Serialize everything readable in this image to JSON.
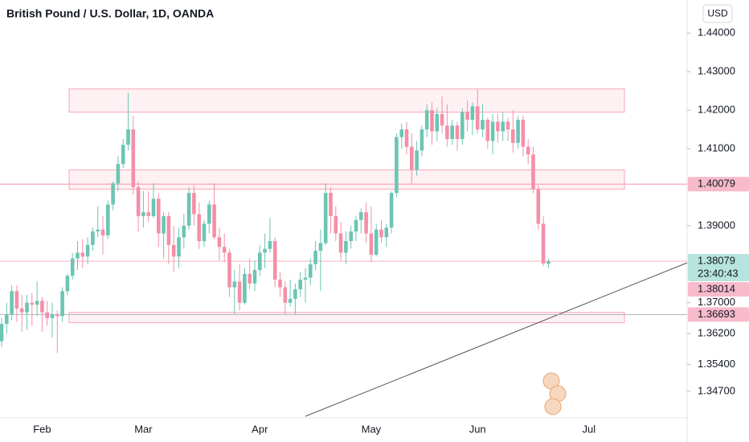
{
  "chart_data": {
    "type": "candlestick",
    "title": "British Pound / U.S. Dollar, 1D, OANDA",
    "currency": "USD",
    "categories": [
      null,
      null,
      null,
      null,
      null,
      null,
      null,
      null,
      "Feb",
      null,
      null,
      null,
      null,
      null,
      null,
      null,
      null,
      null,
      null,
      null,
      null,
      null,
      null,
      null,
      null,
      null,
      null,
      null,
      "Mar",
      null,
      null,
      null,
      null,
      null,
      null,
      null,
      null,
      null,
      null,
      null,
      null,
      null,
      null,
      null,
      null,
      null,
      null,
      null,
      null,
      null,
      null,
      "Apr",
      null,
      null,
      null,
      null,
      null,
      null,
      null,
      null,
      null,
      null,
      null,
      null,
      null,
      null,
      null,
      null,
      null,
      null,
      null,
      null,
      null,
      "May",
      null,
      null,
      null,
      null,
      null,
      null,
      null,
      null,
      null,
      null,
      null,
      null,
      null,
      null,
      null,
      null,
      null,
      null,
      null,
      null,
      "Jun",
      null,
      null,
      null,
      null,
      null,
      null,
      null,
      null,
      null,
      null,
      null,
      null,
      null,
      null,
      null,
      null,
      null,
      null,
      null,
      null,
      null,
      "Jul"
    ],
    "open": [
      1.36,
      1.3645,
      1.367,
      1.373,
      1.3685,
      1.3675,
      1.37,
      1.3695,
      1.3705,
      1.3675,
      1.366,
      1.367,
      1.3665,
      1.373,
      1.377,
      1.3815,
      1.383,
      1.382,
      1.385,
      1.3885,
      1.389,
      1.3875,
      1.3955,
      1.401,
      1.406,
      1.411,
      1.415,
      1.4,
      1.3925,
      1.3935,
      1.3925,
      1.397,
      1.388,
      1.3925,
      1.385,
      1.382,
      1.387,
      1.39,
      1.3985,
      1.393,
      1.386,
      1.3905,
      1.3955,
      1.387,
      1.3845,
      1.383,
      1.374,
      1.3755,
      1.37,
      1.3775,
      1.375,
      1.3785,
      1.383,
      1.384,
      1.386,
      1.376,
      1.374,
      1.37,
      1.371,
      1.3735,
      1.376,
      1.3765,
      1.38,
      1.3835,
      1.3855,
      1.3985,
      1.3925,
      1.388,
      1.383,
      1.386,
      1.3885,
      1.3915,
      1.3935,
      1.388,
      1.3825,
      1.389,
      1.387,
      1.3895,
      1.3985,
      1.413,
      1.415,
      1.4105,
      1.4045,
      1.4095,
      1.415,
      1.42,
      1.4145,
      1.419,
      1.416,
      1.4125,
      1.416,
      1.4125,
      1.4195,
      1.4175,
      1.421,
      1.415,
      1.4175,
      1.412,
      1.417,
      1.4145,
      1.417,
      1.415,
      1.4115,
      1.4175,
      1.4105,
      1.4085,
      1.3995,
      1.3905,
      1.38014,
      null,
      null,
      null,
      null,
      null,
      null,
      null,
      null
    ],
    "high": [
      1.366,
      1.37,
      1.3745,
      1.3745,
      1.372,
      1.372,
      1.3725,
      1.3755,
      1.3715,
      1.3705,
      1.37,
      1.368,
      1.374,
      1.3775,
      1.383,
      1.386,
      1.3865,
      1.387,
      1.3895,
      1.395,
      1.3925,
      1.3965,
      1.4015,
      1.408,
      1.4125,
      1.4245,
      1.4185,
      1.4015,
      1.399,
      1.399,
      1.401,
      1.3985,
      1.3935,
      1.3935,
      1.39,
      1.3895,
      1.393,
      1.4,
      1.4005,
      1.396,
      1.3915,
      1.3965,
      1.401,
      1.3895,
      1.388,
      1.384,
      1.3785,
      1.38,
      1.379,
      1.3815,
      1.381,
      1.385,
      1.388,
      1.392,
      1.387,
      1.378,
      1.3755,
      1.376,
      1.375,
      1.378,
      1.379,
      1.3815,
      1.386,
      1.389,
      1.401,
      1.4,
      1.395,
      1.391,
      1.3885,
      1.39,
      1.3925,
      1.3945,
      1.396,
      1.395,
      1.3905,
      1.3915,
      1.3905,
      1.399,
      1.414,
      1.4165,
      1.417,
      1.414,
      1.412,
      1.416,
      1.4215,
      1.422,
      1.4205,
      1.4235,
      1.4215,
      1.4175,
      1.417,
      1.4205,
      1.4225,
      1.422,
      1.4254,
      1.4215,
      1.418,
      1.419,
      1.419,
      1.4195,
      1.418,
      1.42,
      1.4185,
      1.4185,
      1.4125,
      1.4105,
      1.4005,
      1.3925,
      1.3815,
      null,
      null,
      null,
      null,
      null,
      null,
      null,
      null
    ],
    "low": [
      1.3585,
      1.362,
      1.3655,
      1.365,
      1.3625,
      1.363,
      1.364,
      1.3665,
      1.3625,
      1.364,
      1.361,
      1.357,
      1.365,
      1.372,
      1.376,
      1.3785,
      1.379,
      1.38,
      1.3835,
      1.387,
      1.3825,
      1.3865,
      1.394,
      1.399,
      1.405,
      1.4095,
      1.398,
      1.3885,
      1.3895,
      1.391,
      1.392,
      1.3845,
      1.3815,
      1.38,
      1.378,
      1.379,
      1.384,
      1.389,
      1.39,
      1.384,
      1.3845,
      1.388,
      1.3865,
      1.381,
      1.3805,
      1.3715,
      1.367,
      1.368,
      1.3695,
      1.3735,
      1.373,
      1.377,
      1.379,
      1.383,
      1.374,
      1.3715,
      1.367,
      1.369,
      1.367,
      1.3715,
      1.37,
      1.3745,
      1.3785,
      1.373,
      1.385,
      1.388,
      1.386,
      1.381,
      1.38,
      1.384,
      1.386,
      1.388,
      1.3855,
      1.3805,
      1.382,
      1.3855,
      1.3845,
      1.388,
      1.3975,
      1.41,
      1.4085,
      1.401,
      1.403,
      1.408,
      1.413,
      1.411,
      1.412,
      1.414,
      1.4105,
      1.411,
      1.4095,
      1.411,
      1.4145,
      1.4135,
      1.414,
      1.413,
      1.41,
      1.4085,
      1.4115,
      1.412,
      1.412,
      1.409,
      1.41,
      1.408,
      1.406,
      1.3985,
      1.389,
      1.3795,
      1.379,
      null,
      null,
      null,
      null,
      null,
      null,
      null,
      null
    ],
    "close": [
      1.3645,
      1.367,
      1.373,
      1.3685,
      1.3675,
      1.37,
      1.3695,
      1.3705,
      1.3675,
      1.366,
      1.367,
      1.3665,
      1.373,
      1.377,
      1.3815,
      1.383,
      1.382,
      1.385,
      1.3885,
      1.389,
      1.3875,
      1.3955,
      1.401,
      1.406,
      1.411,
      1.415,
      1.4,
      1.3925,
      1.3935,
      1.3925,
      1.397,
      1.388,
      1.3925,
      1.385,
      1.382,
      1.387,
      1.39,
      1.3985,
      1.393,
      1.386,
      1.3905,
      1.3955,
      1.387,
      1.3845,
      1.383,
      1.374,
      1.3755,
      1.37,
      1.3775,
      1.375,
      1.3785,
      1.383,
      1.384,
      1.386,
      1.376,
      1.374,
      1.37,
      1.371,
      1.3735,
      1.376,
      1.3765,
      1.38,
      1.3835,
      1.3855,
      1.3985,
      1.3925,
      1.388,
      1.383,
      1.386,
      1.3885,
      1.3915,
      1.3935,
      1.388,
      1.3825,
      1.389,
      1.387,
      1.3895,
      1.3985,
      1.413,
      1.415,
      1.4105,
      1.4045,
      1.4095,
      1.415,
      1.42,
      1.4145,
      1.419,
      1.416,
      1.4125,
      1.416,
      1.4125,
      1.4195,
      1.4175,
      1.421,
      1.415,
      1.4175,
      1.412,
      1.417,
      1.4145,
      1.417,
      1.415,
      1.4115,
      1.4175,
      1.4105,
      1.4085,
      1.3995,
      1.3905,
      1.38014,
      1.38079,
      null,
      null,
      null,
      null,
      null,
      null,
      null,
      null
    ],
    "up_color": "#6cc5b3",
    "down_color": "#f48fa8",
    "ylim": [
      1.3401,
      1.4486
    ],
    "yticks": [
      {
        "value": 1.44,
        "label": "1.44000"
      },
      {
        "value": 1.43,
        "label": "1.43000"
      },
      {
        "value": 1.42,
        "label": "1.42000"
      },
      {
        "value": 1.41,
        "label": "1.41000"
      },
      {
        "value": 1.39,
        "label": "1.39000"
      },
      {
        "value": 1.37,
        "label": "1.37000"
      },
      {
        "value": 1.362,
        "label": "1.36200"
      },
      {
        "value": 1.354,
        "label": "1.35400"
      },
      {
        "value": 1.347,
        "label": "1.34700"
      }
    ],
    "zones": [
      [
        1.4195,
        1.4255
      ],
      [
        1.3995,
        1.4045
      ],
      [
        1.3648,
        1.3675
      ]
    ],
    "price_labels": [
      {
        "value": 1.40079,
        "color": "#f8bbcb",
        "line_color": "#f48fa8"
      },
      {
        "value": 1.38079,
        "color": "#b7e4dc",
        "line_color": "#f7b3c2",
        "countdown": "23:40:43"
      },
      {
        "value": 1.38014,
        "color": "#f8bbcb"
      },
      {
        "value": 1.36693,
        "color": "#f8bbcb",
        "line_color": "#b0b3ba"
      }
    ]
  }
}
